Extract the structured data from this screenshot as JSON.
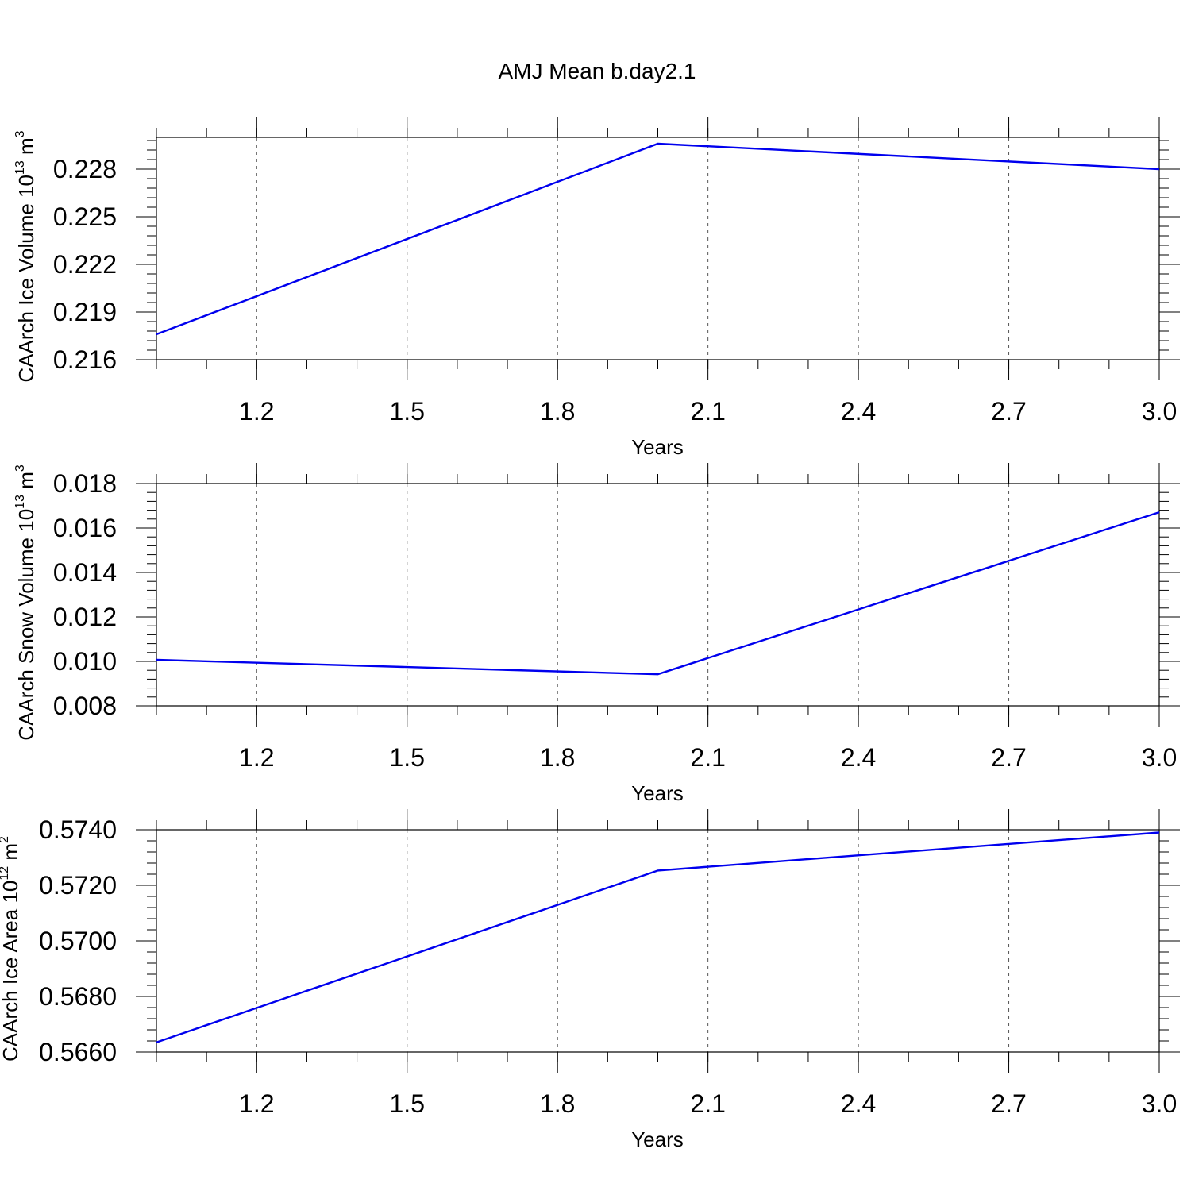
{
  "title": "AMJ Mean b.day2.1",
  "chart_data": [
    {
      "type": "line",
      "title": "AMJ Mean b.day2.1",
      "xlabel": "Years",
      "ylabel": {
        "base": "CAArch Ice Volume 10",
        "exp": "13",
        "unit": " m",
        "unit_exp": "3"
      },
      "x": [
        1,
        2,
        3
      ],
      "series": [
        {
          "values": [
            0.2176,
            0.2296,
            0.228
          ],
          "color": "#0000ee"
        }
      ],
      "xlim": [
        1,
        3
      ],
      "ylim": [
        0.216,
        0.23
      ],
      "xticks": [
        1.2,
        1.5,
        1.8,
        2.1,
        2.4,
        2.7,
        3.0
      ],
      "xtick_labels": [
        "1.2",
        "1.5",
        "1.8",
        "2.1",
        "2.4",
        "2.7",
        "3.0"
      ],
      "yticks": [
        0.216,
        0.219,
        0.222,
        0.225,
        0.228
      ],
      "ytick_labels": [
        "0.216",
        "0.219",
        "0.222",
        "0.225",
        "0.228"
      ],
      "grid": "vertical dashed"
    },
    {
      "type": "line",
      "xlabel": "Years",
      "ylabel": {
        "base": "CAArch Snow Volume 10",
        "exp": "13",
        "unit": " m",
        "unit_exp": "3"
      },
      "x": [
        1,
        2,
        3
      ],
      "series": [
        {
          "values": [
            0.01007,
            0.00942,
            0.01671
          ],
          "color": "#0000ee"
        }
      ],
      "xlim": [
        1,
        3
      ],
      "ylim": [
        0.008,
        0.018
      ],
      "xticks": [
        1.2,
        1.5,
        1.8,
        2.1,
        2.4,
        2.7,
        3.0
      ],
      "xtick_labels": [
        "1.2",
        "1.5",
        "1.8",
        "2.1",
        "2.4",
        "2.7",
        "3.0"
      ],
      "yticks": [
        0.008,
        0.01,
        0.012,
        0.014,
        0.016,
        0.018
      ],
      "ytick_labels": [
        "0.008",
        "0.010",
        "0.012",
        "0.014",
        "0.016",
        "0.018"
      ],
      "grid": "vertical dashed"
    },
    {
      "type": "line",
      "xlabel": "Years",
      "ylabel": {
        "base": "CAArch Ice Area 10",
        "exp": "12",
        "unit": " m",
        "unit_exp": "2"
      },
      "x": [
        1,
        2,
        3
      ],
      "series": [
        {
          "values": [
            0.56635,
            0.57253,
            0.5739
          ],
          "color": "#0000ee"
        }
      ],
      "xlim": [
        1,
        3
      ],
      "ylim": [
        0.566,
        0.574
      ],
      "xticks": [
        1.2,
        1.5,
        1.8,
        2.1,
        2.4,
        2.7,
        3.0
      ],
      "xtick_labels": [
        "1.2",
        "1.5",
        "1.8",
        "2.1",
        "2.4",
        "2.7",
        "3.0"
      ],
      "yticks": [
        0.566,
        0.568,
        0.57,
        0.572,
        0.574
      ],
      "ytick_labels": [
        "0.5660",
        "0.5680",
        "0.5700",
        "0.5720",
        "0.5740"
      ],
      "grid": "vertical dashed"
    }
  ]
}
